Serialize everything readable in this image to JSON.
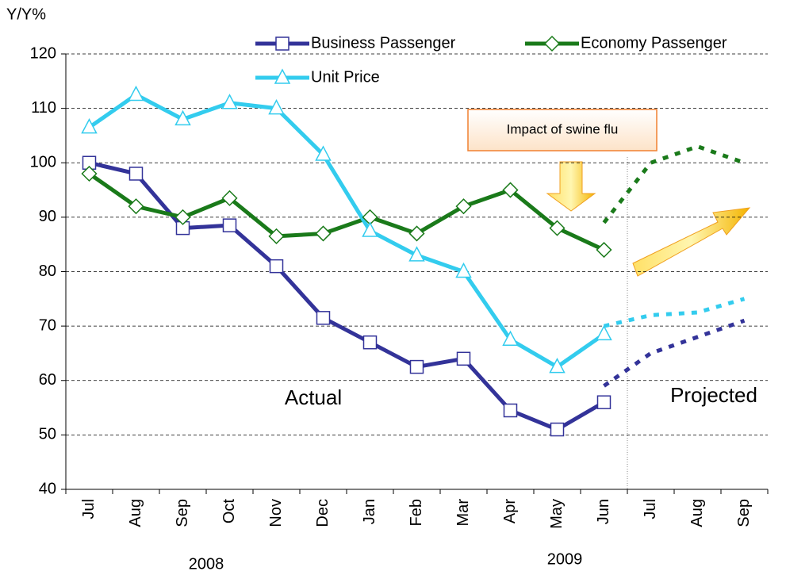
{
  "chart_data": {
    "type": "line",
    "y_label": "Y/Y%",
    "categories": [
      "Jul",
      "Aug",
      "Sep",
      "Oct",
      "Nov",
      "Dec",
      "Jan",
      "Feb",
      "Mar",
      "Apr",
      "May",
      "Jun",
      "Jul",
      "Aug",
      "Sep"
    ],
    "year_labels": [
      "2008",
      "2009"
    ],
    "series": [
      {
        "name": "Business Passenger",
        "color": "#333399",
        "marker": "square",
        "values": [
          100,
          98,
          88,
          88.5,
          81,
          71.5,
          67,
          62.5,
          64,
          54.5,
          51,
          56,
          null,
          null,
          null
        ]
      },
      {
        "name": "Economy Passenger",
        "color": "#1a7a1a",
        "marker": "diamond",
        "values": [
          98,
          92,
          90,
          93.5,
          86.5,
          87,
          90,
          87,
          92,
          95,
          88,
          84,
          null,
          null,
          null
        ]
      },
      {
        "name": "Unit Price",
        "color": "#33ccee",
        "marker": "triangle",
        "values": [
          106.5,
          112.5,
          108,
          111,
          110,
          101.5,
          87.5,
          83,
          80,
          67.5,
          62.5,
          68.5,
          null,
          null,
          null
        ]
      }
    ],
    "projected": [
      {
        "color": "#333399",
        "values": [
          null,
          null,
          null,
          null,
          null,
          null,
          null,
          null,
          null,
          null,
          null,
          59,
          65,
          68,
          71
        ]
      },
      {
        "color": "#1a7a1a",
        "values": [
          null,
          null,
          null,
          null,
          null,
          null,
          null,
          null,
          null,
          null,
          null,
          89,
          100,
          103,
          100
        ]
      },
      {
        "color": "#33ccee",
        "values": [
          null,
          null,
          null,
          null,
          null,
          null,
          null,
          null,
          null,
          null,
          null,
          70,
          72,
          72.5,
          75
        ]
      }
    ],
    "annotations": [
      "Actual",
      "Projected",
      "Impact of swine flu"
    ],
    "ylim": [
      40,
      120
    ],
    "yticks": [
      40,
      50,
      60,
      70,
      80,
      90,
      100,
      110,
      120
    ],
    "grid": true
  }
}
